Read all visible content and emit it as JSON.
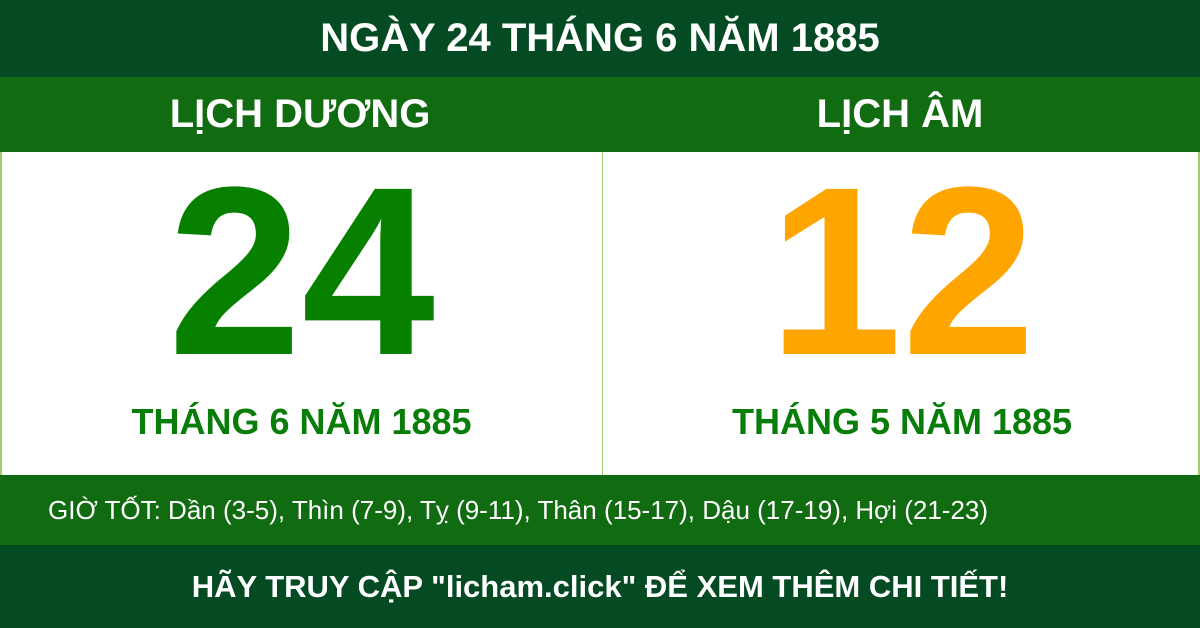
{
  "title": "NGÀY 24 THÁNG 6 NĂM 1885",
  "solar": {
    "heading": "LỊCH DƯƠNG",
    "day": "24",
    "month_year": "THÁNG 6 NĂM 1885"
  },
  "lunar": {
    "heading": "LỊCH ÂM",
    "day": "12",
    "month_year": "THÁNG 5 NĂM 1885"
  },
  "good_hours": "GIỜ TỐT: Dần (3-5), Thìn (7-9), Tỵ (9-11), Thân (15-17), Dậu (17-19), Hợi (21-23)",
  "footer": "HÃY TRUY CẬP \"licham.click\" ĐỂ XEM THÊM CHI TIẾT!",
  "colors": {
    "dark_green": "#044a22",
    "green": "#116b10",
    "solar_day": "#078000",
    "lunar_day": "#ffa500"
  }
}
